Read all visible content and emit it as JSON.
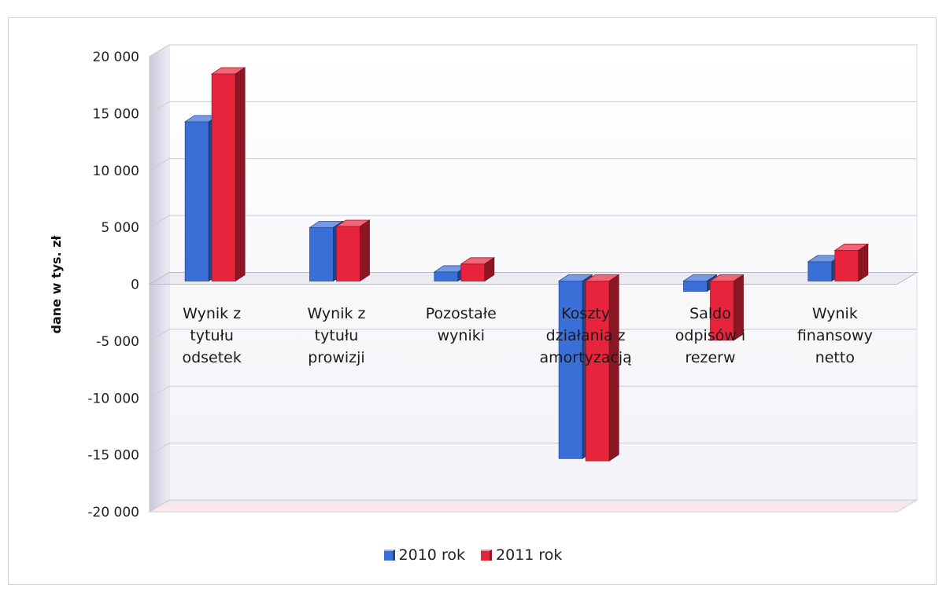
{
  "chart_data": {
    "type": "bar",
    "ylabel": "dane w tys. zł",
    "ylim": [
      -20000,
      20000
    ],
    "yticks": [
      20000,
      15000,
      10000,
      5000,
      0,
      -5000,
      -10000,
      -15000,
      -20000
    ],
    "ytick_labels": [
      "20 000",
      "15 000",
      "10 000",
      "5 000",
      "0",
      "-5 000",
      "-10 000",
      "-15 000",
      "-20 000"
    ],
    "grid": true,
    "legend_position": "bottom",
    "categories": [
      [
        "Wynik z",
        "tytułu",
        "odsetek"
      ],
      [
        "Wynik z",
        "tytułu",
        "prowizji"
      ],
      [
        "Pozostałe",
        "wyniki"
      ],
      [
        "Koszty",
        "działania z",
        "amortyzacją"
      ],
      [
        "Saldo",
        "odpisów i",
        "rezerw"
      ],
      [
        "Wynik",
        "finansowy",
        "netto"
      ]
    ],
    "series": [
      {
        "name": "2010 rok",
        "color": "#3a6fd8",
        "values": [
          14000,
          4700,
          800,
          -15600,
          -900,
          1700
        ]
      },
      {
        "name": "2011 rok",
        "color": "#e8243c",
        "values": [
          18200,
          4800,
          1500,
          -15800,
          -5200,
          2700
        ]
      }
    ]
  }
}
